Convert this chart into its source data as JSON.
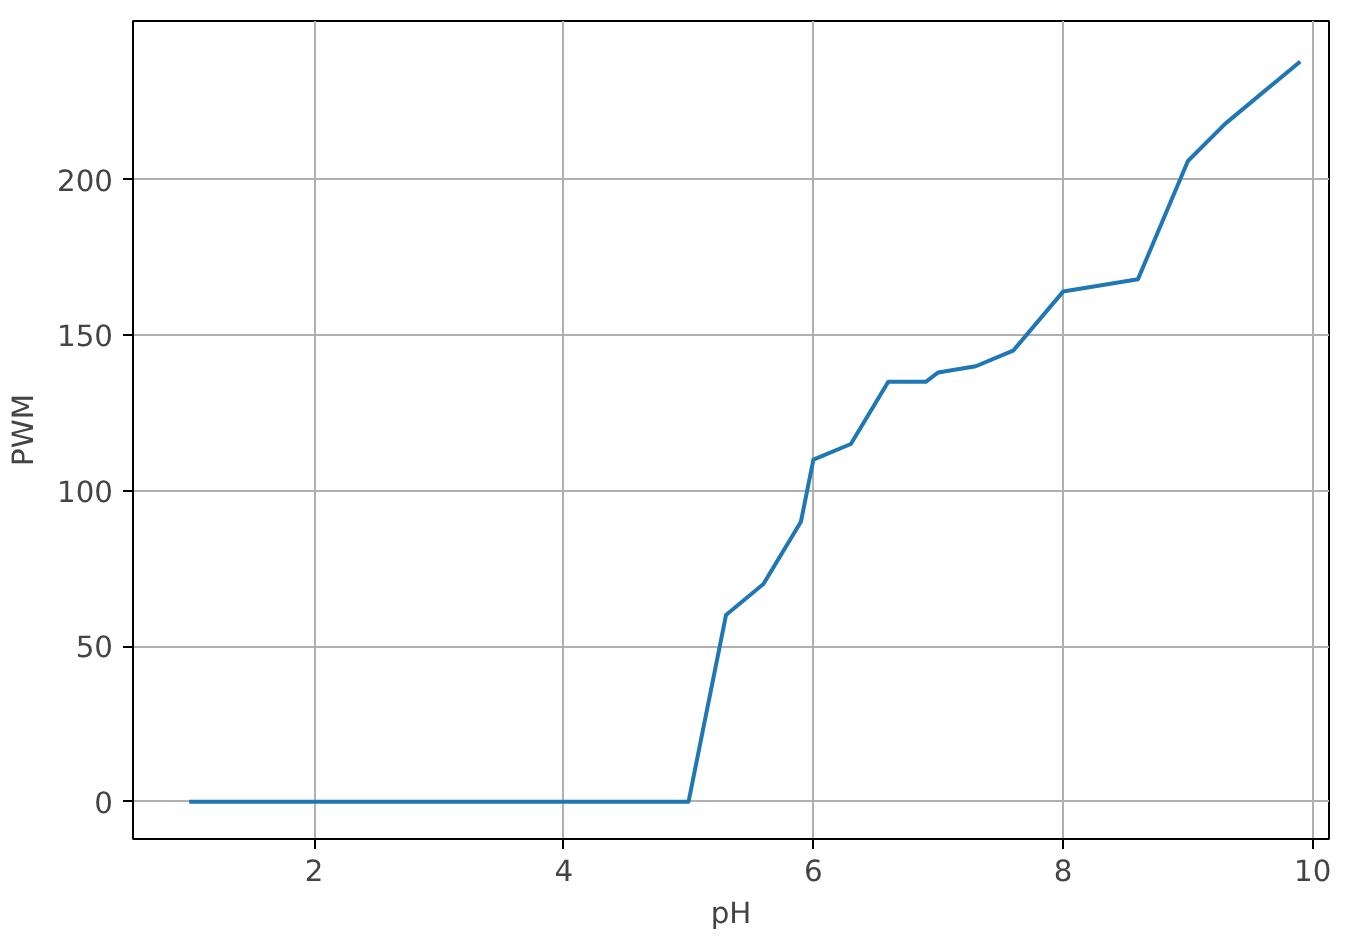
{
  "chart_data": {
    "type": "line",
    "xlabel": "pH",
    "ylabel": "PWM",
    "x": [
      1.0,
      5.0,
      5.3,
      5.6,
      5.9,
      6.0,
      6.3,
      6.6,
      6.9,
      7.0,
      7.3,
      7.6,
      8.0,
      8.6,
      9.0,
      9.3,
      9.9
    ],
    "series": [
      {
        "color": "#1f77b4",
        "values": [
          0,
          0,
          60,
          70,
          90,
          110,
          115,
          135,
          135,
          138,
          140,
          145,
          164,
          168,
          206,
          218,
          238
        ]
      }
    ],
    "xlim": [
      0.55,
      10.13
    ],
    "ylim": [
      -12,
      251
    ],
    "xticks": [
      2,
      4,
      6,
      8,
      10
    ],
    "yticks": [
      0,
      50,
      100,
      150,
      200
    ],
    "grid": true
  }
}
